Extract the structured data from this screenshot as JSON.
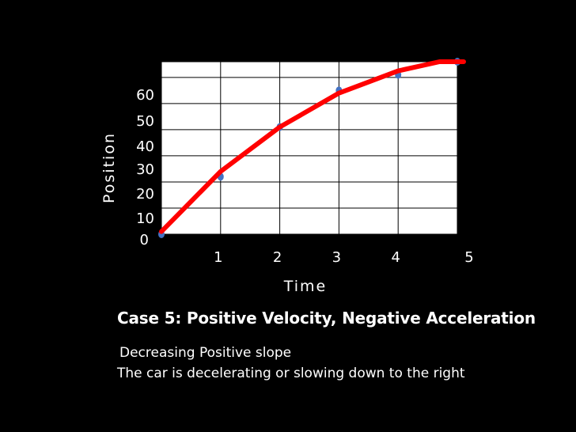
{
  "colors": {
    "background": "#000000",
    "plot_area": "#ffffff",
    "grid": "#000000",
    "text": "#ffffff",
    "line": "#ff0000",
    "points": "#4472c4"
  },
  "chart_data": {
    "type": "scatter",
    "x": [
      0,
      1,
      2,
      3,
      4,
      5
    ],
    "y": [
      0,
      22,
      41,
      55,
      61,
      66
    ],
    "trend_line": {
      "x": [
        0,
        1,
        2,
        3,
        4,
        4.7
      ],
      "y": [
        1,
        24,
        41,
        54,
        62.5,
        66
      ]
    },
    "xlabel": "Time",
    "ylabel": "Position",
    "x_ticks": [
      "1",
      "2",
      "3",
      "4",
      "5"
    ],
    "y_ticks": [
      "0",
      "10",
      "20",
      "30",
      "40",
      "50",
      "60"
    ],
    "xlim": [
      0,
      5
    ],
    "ylim": [
      0,
      66
    ],
    "grid": true
  },
  "caption": {
    "title": "Case 5: Positive Velocity, Negative Acceleration",
    "line1": "Decreasing Positive slope",
    "line2": "The car is decelerating or slowing down to the right"
  }
}
